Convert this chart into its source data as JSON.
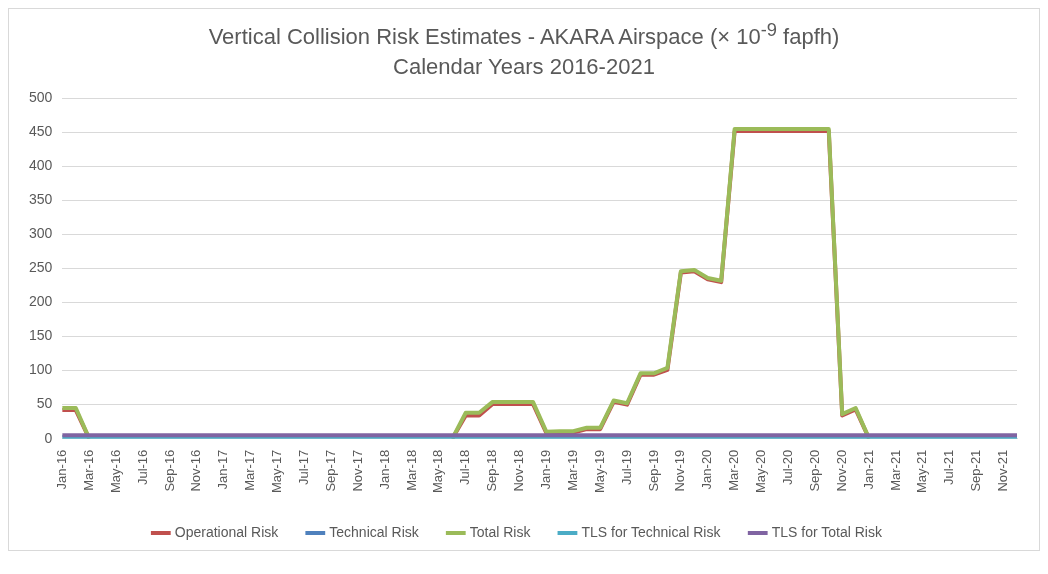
{
  "chart_data": {
    "type": "line",
    "title": "Vertical Collision Risk Estimates - AKARA Airspace (× 10$^{-9}$ fapfh)",
    "subtitle": "Calendar Years 2016-2021",
    "categories": [
      "Jan-16",
      null,
      "Mar-16",
      null,
      "May-16",
      null,
      "Jul-16",
      null,
      "Sep-16",
      null,
      "Nov-16",
      null,
      "Jan-17",
      null,
      "Mar-17",
      null,
      "May-17",
      null,
      "Jul-17",
      null,
      "Sep-17",
      null,
      "Nov-17",
      null,
      "Jan-18",
      null,
      "Mar-18",
      null,
      "May-18",
      null,
      "Jul-18",
      null,
      "Sep-18",
      null,
      "Nov-18",
      null,
      "Jan-19",
      null,
      "Mar-19",
      null,
      "May-19",
      null,
      "Jul-19",
      null,
      "Sep-19",
      null,
      "Nov-19",
      null,
      "Jan-20",
      null,
      "Mar-20",
      null,
      "May-20",
      null,
      "Jul-20",
      null,
      "Sep-20",
      null,
      "Nov-20",
      null,
      "Jan-21",
      null,
      "Mar-21",
      null,
      "May-21",
      null,
      "Jul-21",
      null,
      "Sep-21",
      null,
      "Nov-21",
      null
    ],
    "series": [
      {
        "name": "Operational Risk",
        "color": "#c0504d",
        "values": [
          42,
          42,
          0,
          null,
          null,
          null,
          null,
          null,
          null,
          null,
          null,
          null,
          null,
          null,
          null,
          null,
          null,
          null,
          null,
          null,
          null,
          null,
          null,
          null,
          null,
          null,
          null,
          null,
          null,
          0,
          34,
          34,
          51,
          51,
          51,
          51,
          8,
          9,
          9,
          14,
          14,
          54,
          50,
          94,
          94,
          101,
          244,
          246,
          234,
          230,
          452,
          452,
          452,
          452,
          452,
          452,
          452,
          452,
          34,
          43,
          0,
          null,
          null,
          null,
          null,
          null,
          null,
          null,
          null,
          null,
          null,
          null
        ]
      },
      {
        "name": "Technical Risk",
        "color": "#4f81bd",
        "values": [
          null,
          null,
          null,
          null,
          null,
          null,
          null,
          null,
          null,
          null,
          null,
          null,
          null,
          null,
          null,
          null,
          null,
          null,
          null,
          null,
          null,
          null,
          null,
          null,
          null,
          null,
          null,
          null,
          null,
          null,
          null,
          null,
          null,
          null,
          null,
          null,
          null,
          null,
          null,
          null,
          null,
          null,
          null,
          null,
          null,
          null,
          null,
          null,
          null,
          null,
          null,
          null,
          null,
          null,
          null,
          null,
          null,
          null,
          null,
          null,
          null,
          null,
          null,
          null,
          null,
          null,
          null,
          null,
          null,
          null,
          null,
          null
        ]
      },
      {
        "name": "Total Risk",
        "color": "#9bbb59",
        "values": [
          45,
          45,
          0,
          null,
          null,
          null,
          null,
          null,
          null,
          null,
          null,
          null,
          null,
          null,
          null,
          null,
          null,
          null,
          null,
          null,
          null,
          null,
          null,
          null,
          null,
          null,
          null,
          null,
          null,
          0,
          38,
          38,
          54,
          54,
          54,
          54,
          10,
          11,
          11,
          16,
          16,
          56,
          52,
          96,
          96,
          104,
          246,
          248,
          236,
          232,
          455,
          455,
          455,
          455,
          455,
          455,
          455,
          455,
          36,
          45,
          0,
          null,
          null,
          null,
          null,
          null,
          null,
          null,
          null,
          null,
          null,
          null
        ]
      },
      {
        "name": "TLS for Technical Risk",
        "color": "#4bacc6",
        "values": [
          2.5,
          2.5,
          2.5,
          2.5,
          2.5,
          2.5,
          2.5,
          2.5,
          2.5,
          2.5,
          2.5,
          2.5,
          2.5,
          2.5,
          2.5,
          2.5,
          2.5,
          2.5,
          2.5,
          2.5,
          2.5,
          2.5,
          2.5,
          2.5,
          2.5,
          2.5,
          2.5,
          2.5,
          2.5,
          2.5,
          2.5,
          2.5,
          2.5,
          2.5,
          2.5,
          2.5,
          2.5,
          2.5,
          2.5,
          2.5,
          2.5,
          2.5,
          2.5,
          2.5,
          2.5,
          2.5,
          2.5,
          2.5,
          2.5,
          2.5,
          2.5,
          2.5,
          2.5,
          2.5,
          2.5,
          2.5,
          2.5,
          2.5,
          2.5,
          2.5,
          2.5,
          2.5,
          2.5,
          2.5,
          2.5,
          2.5,
          2.5,
          2.5,
          2.5,
          2.5,
          2.5,
          2.5
        ]
      },
      {
        "name": "TLS for Total Risk",
        "color": "#8064a2",
        "values": [
          5,
          5,
          5,
          5,
          5,
          5,
          5,
          5,
          5,
          5,
          5,
          5,
          5,
          5,
          5,
          5,
          5,
          5,
          5,
          5,
          5,
          5,
          5,
          5,
          5,
          5,
          5,
          5,
          5,
          5,
          5,
          5,
          5,
          5,
          5,
          5,
          5,
          5,
          5,
          5,
          5,
          5,
          5,
          5,
          5,
          5,
          5,
          5,
          5,
          5,
          5,
          5,
          5,
          5,
          5,
          5,
          5,
          5,
          5,
          5,
          5,
          5,
          5,
          5,
          5,
          5,
          5,
          5,
          5,
          5,
          5,
          5
        ]
      }
    ],
    "ylim": [
      0,
      500
    ],
    "yticks": [
      0,
      50,
      100,
      150,
      200,
      250,
      300,
      350,
      400,
      450,
      500
    ],
    "grid": "y",
    "legend": "bottom",
    "marker": "none",
    "line_style": "solid"
  }
}
